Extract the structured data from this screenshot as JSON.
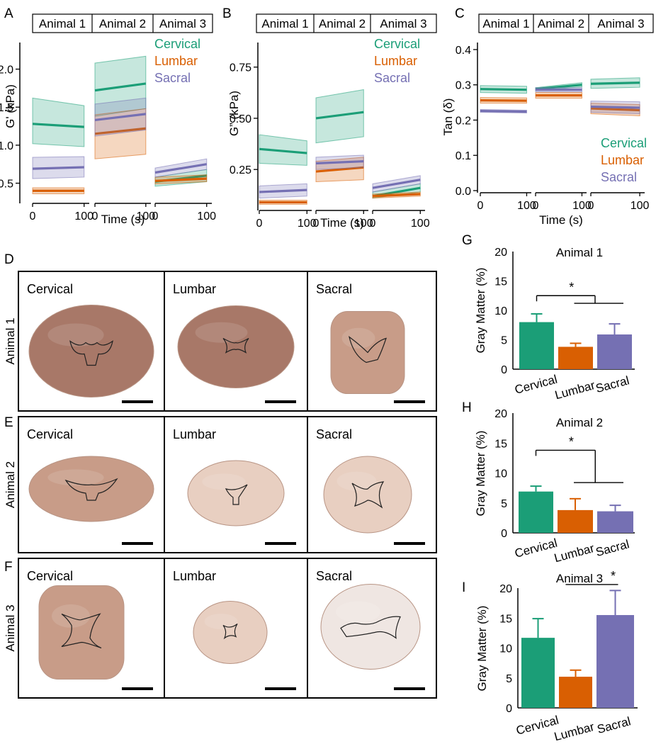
{
  "colors": {
    "cervical": "#1b9e77",
    "lumbar": "#d95f02",
    "sacral": "#7570b3",
    "tissue_dark": "#a87868",
    "tissue_mid": "#c89c88",
    "tissue_light": "#e8cfc1",
    "tissue_pale": "#efe6e2"
  },
  "regions": [
    "Cervical",
    "Lumbar",
    "Sacral"
  ],
  "animals": [
    "Animal 1",
    "Animal 2",
    "Animal 3"
  ],
  "panel_letters": [
    "A",
    "B",
    "C",
    "D",
    "E",
    "F",
    "G",
    "H",
    "I"
  ],
  "photos": {
    "rows": [
      {
        "letter": "D",
        "animal": "Animal 1",
        "cells": [
          "Cervical",
          "Lumbar",
          "Sacral"
        ],
        "tones": [
          "tissue_dark",
          "tissue_dark",
          "tissue_mid"
        ]
      },
      {
        "letter": "E",
        "animal": "Animal 2",
        "cells": [
          "Cervical",
          "Lumbar",
          "Sacral"
        ],
        "tones": [
          "tissue_mid",
          "tissue_light",
          "tissue_light"
        ]
      },
      {
        "letter": "F",
        "animal": "Animal 3",
        "cells": [
          "Cervical",
          "Lumbar",
          "Sacral"
        ],
        "tones": [
          "tissue_mid",
          "tissue_light",
          "tissue_pale"
        ]
      }
    ]
  },
  "chart_data": [
    {
      "id": "A",
      "type": "line",
      "ylabel": "G' (kPa)",
      "xlabel": "Time (s)",
      "ylim": [
        0.3,
        2.35
      ],
      "yticks": [
        0.5,
        1.0,
        1.5,
        2.0
      ],
      "ytick_labels": [
        "0.5",
        "1.0",
        "1.5",
        "2.0"
      ],
      "xlim": [
        0,
        110
      ],
      "xticks": [
        0,
        100
      ],
      "xtick_labels": [
        "0",
        "100"
      ],
      "facets": [
        "Animal 1",
        "Animal 2",
        "Animal 3"
      ],
      "legend": [
        "Cervical",
        "Lumbar",
        "Sacral"
      ],
      "legend_position": "top-right",
      "series": [
        {
          "facet": 0,
          "name": "Cervical",
          "x": [
            0,
            100
          ],
          "mean": [
            1.28,
            1.24
          ],
          "lower": [
            1.02,
            0.98
          ],
          "upper": [
            1.62,
            1.52
          ]
        },
        {
          "facet": 0,
          "name": "Lumbar",
          "x": [
            0,
            100
          ],
          "mean": [
            0.4,
            0.4
          ],
          "lower": [
            0.36,
            0.36
          ],
          "upper": [
            0.44,
            0.44
          ]
        },
        {
          "facet": 0,
          "name": "Sacral",
          "x": [
            0,
            100
          ],
          "mean": [
            0.69,
            0.71
          ],
          "lower": [
            0.56,
            0.58
          ],
          "upper": [
            0.84,
            0.85
          ]
        },
        {
          "facet": 1,
          "name": "Cervical",
          "x": [
            0,
            100
          ],
          "mean": [
            1.72,
            1.81
          ],
          "lower": [
            1.38,
            1.48
          ],
          "upper": [
            2.08,
            2.17
          ]
        },
        {
          "facet": 1,
          "name": "Lumbar",
          "x": [
            0,
            100
          ],
          "mean": [
            1.15,
            1.22
          ],
          "lower": [
            0.82,
            0.88
          ],
          "upper": [
            1.4,
            1.48
          ]
        },
        {
          "facet": 1,
          "name": "Sacral",
          "x": [
            0,
            100
          ],
          "mean": [
            1.33,
            1.41
          ],
          "lower": [
            1.12,
            1.2
          ],
          "upper": [
            1.54,
            1.62
          ]
        },
        {
          "facet": 2,
          "name": "Cervical",
          "x": [
            0,
            100
          ],
          "mean": [
            0.52,
            0.6
          ],
          "lower": [
            0.46,
            0.52
          ],
          "upper": [
            0.58,
            0.68
          ]
        },
        {
          "facet": 2,
          "name": "Lumbar",
          "x": [
            0,
            100
          ],
          "mean": [
            0.53,
            0.56
          ],
          "lower": [
            0.49,
            0.52
          ],
          "upper": [
            0.58,
            0.61
          ]
        },
        {
          "facet": 2,
          "name": "Sacral",
          "x": [
            0,
            100
          ],
          "mean": [
            0.64,
            0.75
          ],
          "lower": [
            0.58,
            0.68
          ],
          "upper": [
            0.7,
            0.82
          ]
        }
      ]
    },
    {
      "id": "B",
      "type": "line",
      "ylabel": "G” (kPa)",
      "xlabel": "Time (s)",
      "ylim": [
        0.05,
        0.87
      ],
      "yticks": [
        0.25,
        0.5,
        0.75
      ],
      "ytick_labels": [
        "0.25",
        "0.50",
        "0.75"
      ],
      "xlim": [
        0,
        110
      ],
      "xticks": [
        0,
        100
      ],
      "xtick_labels": [
        "0",
        "100"
      ],
      "facets": [
        "Animal 1",
        "Animal 2",
        "Animal 3"
      ],
      "legend": [
        "Cervical",
        "Lumbar",
        "Sacral"
      ],
      "legend_position": "top-right",
      "series": [
        {
          "facet": 0,
          "name": "Cervical",
          "x": [
            0,
            100
          ],
          "mean": [
            0.35,
            0.33
          ],
          "lower": [
            0.28,
            0.27
          ],
          "upper": [
            0.42,
            0.39
          ]
        },
        {
          "facet": 0,
          "name": "Lumbar",
          "x": [
            0,
            100
          ],
          "mean": [
            0.09,
            0.09
          ],
          "lower": [
            0.08,
            0.08
          ],
          "upper": [
            0.1,
            0.1
          ]
        },
        {
          "facet": 0,
          "name": "Sacral",
          "x": [
            0,
            100
          ],
          "mean": [
            0.14,
            0.15
          ],
          "lower": [
            0.11,
            0.12
          ],
          "upper": [
            0.17,
            0.18
          ]
        },
        {
          "facet": 1,
          "name": "Cervical",
          "x": [
            0,
            100
          ],
          "mean": [
            0.5,
            0.53
          ],
          "lower": [
            0.38,
            0.41
          ],
          "upper": [
            0.6,
            0.64
          ]
        },
        {
          "facet": 1,
          "name": "Lumbar",
          "x": [
            0,
            100
          ],
          "mean": [
            0.24,
            0.26
          ],
          "lower": [
            0.19,
            0.2
          ],
          "upper": [
            0.29,
            0.31
          ]
        },
        {
          "facet": 1,
          "name": "Sacral",
          "x": [
            0,
            100
          ],
          "mean": [
            0.28,
            0.29
          ],
          "lower": [
            0.25,
            0.26
          ],
          "upper": [
            0.31,
            0.32
          ]
        },
        {
          "facet": 2,
          "name": "Cervical",
          "x": [
            0,
            100
          ],
          "mean": [
            0.12,
            0.16
          ],
          "lower": [
            0.11,
            0.14
          ],
          "upper": [
            0.14,
            0.18
          ]
        },
        {
          "facet": 2,
          "name": "Lumbar",
          "x": [
            0,
            100
          ],
          "mean": [
            0.12,
            0.13
          ],
          "lower": [
            0.11,
            0.12
          ],
          "upper": [
            0.13,
            0.14
          ]
        },
        {
          "facet": 2,
          "name": "Sacral",
          "x": [
            0,
            100
          ],
          "mean": [
            0.16,
            0.2
          ],
          "lower": [
            0.14,
            0.18
          ],
          "upper": [
            0.18,
            0.22
          ]
        }
      ]
    },
    {
      "id": "C",
      "type": "line",
      "ylabel": "Tan (δ)",
      "xlabel": "Time (s)",
      "ylim": [
        0,
        0.42
      ],
      "yticks": [
        0.0,
        0.1,
        0.2,
        0.3,
        0.4
      ],
      "ytick_labels": [
        "0.0",
        "0.1",
        "0.2",
        "0.3",
        "0.4"
      ],
      "xlim": [
        0,
        110
      ],
      "xticks": [
        0,
        100
      ],
      "xtick_labels": [
        "0",
        "100"
      ],
      "facets": [
        "Animal 1",
        "Animal 2",
        "Animal 3"
      ],
      "legend": [
        "Cervical",
        "Lumbar",
        "Sacral"
      ],
      "legend_position": "bottom-right",
      "series": [
        {
          "facet": 0,
          "name": "Cervical",
          "x": [
            0,
            100
          ],
          "mean": [
            0.288,
            0.286
          ],
          "lower": [
            0.278,
            0.276
          ],
          "upper": [
            0.298,
            0.296
          ]
        },
        {
          "facet": 0,
          "name": "Lumbar",
          "x": [
            0,
            100
          ],
          "mean": [
            0.256,
            0.255
          ],
          "lower": [
            0.248,
            0.248
          ],
          "upper": [
            0.264,
            0.263
          ]
        },
        {
          "facet": 0,
          "name": "Sacral",
          "x": [
            0,
            100
          ],
          "mean": [
            0.226,
            0.224
          ],
          "lower": [
            0.222,
            0.22
          ],
          "upper": [
            0.23,
            0.228
          ]
        },
        {
          "facet": 1,
          "name": "Cervical",
          "x": [
            0,
            100
          ],
          "mean": [
            0.288,
            0.3
          ],
          "lower": [
            0.284,
            0.294
          ],
          "upper": [
            0.292,
            0.306
          ]
        },
        {
          "facet": 1,
          "name": "Lumbar",
          "x": [
            0,
            100
          ],
          "mean": [
            0.27,
            0.27
          ],
          "lower": [
            0.262,
            0.262
          ],
          "upper": [
            0.278,
            0.278
          ]
        },
        {
          "facet": 1,
          "name": "Sacral",
          "x": [
            0,
            100
          ],
          "mean": [
            0.286,
            0.286
          ],
          "lower": [
            0.28,
            0.28
          ],
          "upper": [
            0.292,
            0.292
          ]
        },
        {
          "facet": 2,
          "name": "Cervical",
          "x": [
            0,
            100
          ],
          "mean": [
            0.303,
            0.306
          ],
          "lower": [
            0.29,
            0.293
          ],
          "upper": [
            0.316,
            0.32
          ]
        },
        {
          "facet": 2,
          "name": "Lumbar",
          "x": [
            0,
            100
          ],
          "mean": [
            0.233,
            0.228
          ],
          "lower": [
            0.218,
            0.212
          ],
          "upper": [
            0.248,
            0.244
          ]
        },
        {
          "facet": 2,
          "name": "Sacral",
          "x": [
            0,
            100
          ],
          "mean": [
            0.238,
            0.235
          ],
          "lower": [
            0.222,
            0.218
          ],
          "upper": [
            0.254,
            0.252
          ]
        }
      ]
    },
    {
      "id": "G",
      "type": "bar",
      "title": "Animal 1",
      "ylabel": "Gray Matter (%)",
      "categories": [
        "Cervical",
        "Lumbar",
        "Sacral"
      ],
      "values": [
        8.0,
        3.8,
        5.9
      ],
      "errors": [
        1.4,
        0.6,
        1.8
      ],
      "ylim": [
        0,
        20
      ],
      "yticks": [
        0,
        5,
        10,
        15,
        20
      ],
      "significance": [
        {
          "label": "*",
          "from": "Cervical",
          "to": [
            "Lumbar",
            "Sacral"
          ],
          "y": 12.5,
          "y2": 11.2
        }
      ]
    },
    {
      "id": "H",
      "type": "bar",
      "title": "Animal 2",
      "ylabel": "Gray Matter (%)",
      "categories": [
        "Cervical",
        "Lumbar",
        "Sacral"
      ],
      "values": [
        6.9,
        3.8,
        3.6
      ],
      "errors": [
        0.9,
        1.9,
        1.0
      ],
      "ylim": [
        0,
        20
      ],
      "yticks": [
        0,
        5,
        10,
        15,
        20
      ],
      "significance": [
        {
          "label": "*",
          "from": "Cervical",
          "to": [
            "Lumbar",
            "Sacral"
          ],
          "y": 13.8,
          "y2": 8.4
        }
      ]
    },
    {
      "id": "I",
      "type": "bar",
      "title": "Animal 3",
      "ylabel": "Gray Matter (%)",
      "categories": [
        "Cervical",
        "Lumbar",
        "Sacral"
      ],
      "values": [
        11.7,
        5.2,
        15.5
      ],
      "errors": [
        3.2,
        1.1,
        4.1
      ],
      "ylim": [
        0,
        20
      ],
      "yticks": [
        0,
        5,
        10,
        15,
        20
      ],
      "significance": [
        {
          "label": "*",
          "between": [
            "Lumbar",
            "Sacral"
          ],
          "y": 20.6
        }
      ]
    }
  ]
}
